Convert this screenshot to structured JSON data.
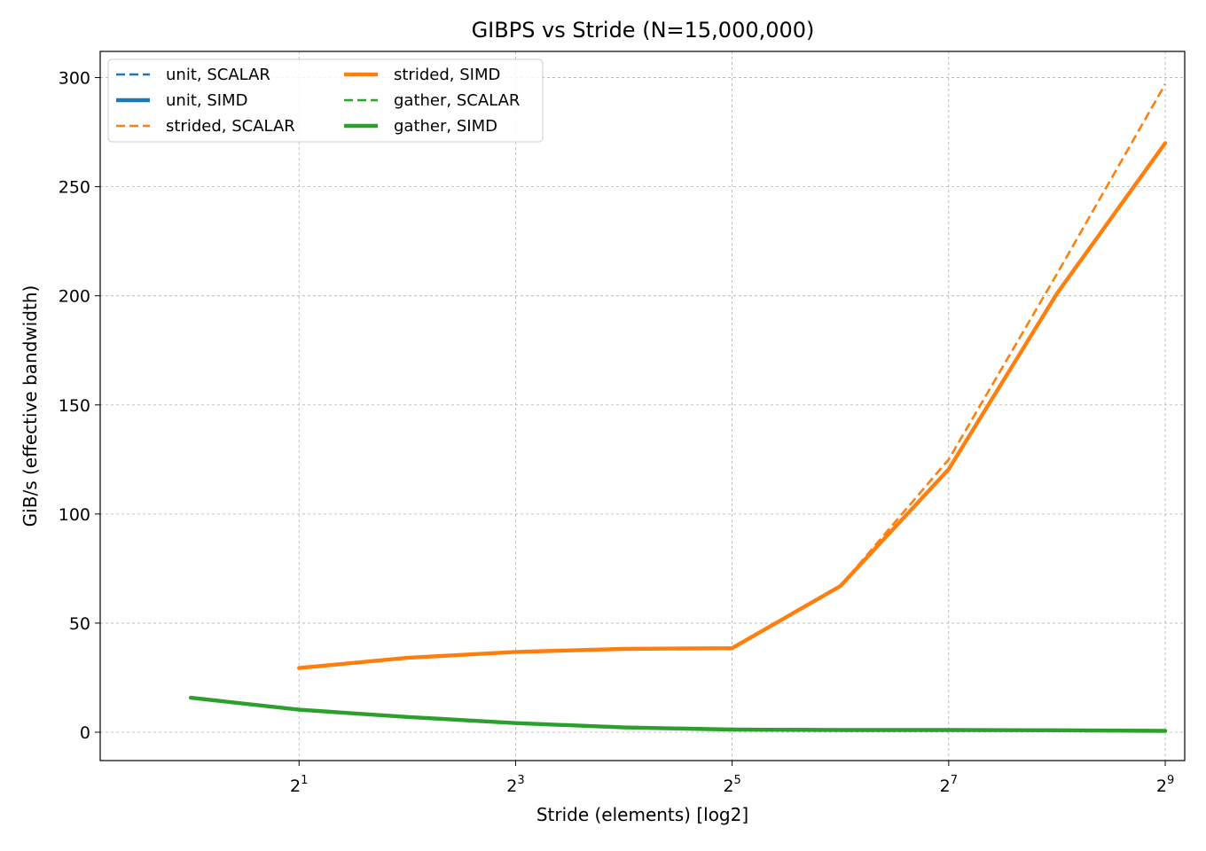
{
  "chart_data": {
    "type": "line",
    "title": "GIBPS vs Stride (N=15,000,000)",
    "xlabel": "Stride (elements) [log2]",
    "ylabel": "GiB/s (effective bandwidth)",
    "x_scale": "log2",
    "x_ticks": [
      {
        "value": 2,
        "base": "2",
        "exp": "1"
      },
      {
        "value": 8,
        "base": "2",
        "exp": "3"
      },
      {
        "value": 32,
        "base": "2",
        "exp": "5"
      },
      {
        "value": 128,
        "base": "2",
        "exp": "7"
      },
      {
        "value": 512,
        "base": "2",
        "exp": "9"
      }
    ],
    "xlim": [
      0.56,
      580
    ],
    "ylim": [
      -13,
      312
    ],
    "y_ticks": [
      0,
      50,
      100,
      150,
      200,
      250,
      300
    ],
    "grid": true,
    "legend_position": "top-left",
    "series": [
      {
        "name": "unit, SCALAR",
        "color": "#1f77b4",
        "style": "dashed",
        "x": [
          1
        ],
        "y": [
          15.8
        ]
      },
      {
        "name": "unit, SIMD",
        "color": "#1f77b4",
        "style": "solid",
        "x": [
          1
        ],
        "y": [
          15.8
        ]
      },
      {
        "name": "strided, SCALAR",
        "color": "#ff7f0e",
        "style": "dashed",
        "x": [
          2,
          4,
          8,
          16,
          32,
          64,
          128,
          256,
          512
        ],
        "y": [
          29.6,
          34.3,
          36.9,
          38.3,
          38.6,
          67.0,
          125.0,
          210.0,
          297.0
        ]
      },
      {
        "name": "strided, SIMD",
        "color": "#ff7f0e",
        "style": "solid",
        "x": [
          2,
          4,
          8,
          16,
          32,
          64,
          128,
          256,
          512
        ],
        "y": [
          29.4,
          34.1,
          36.8,
          38.2,
          38.5,
          67.0,
          120.5,
          201.0,
          270.0
        ]
      },
      {
        "name": "gather, SCALAR",
        "color": "#2ca02c",
        "style": "dashed",
        "x": [
          1,
          2,
          4,
          8,
          16,
          32,
          64,
          128,
          256,
          512
        ],
        "y": [
          15.8,
          10.3,
          7.0,
          4.2,
          2.2,
          1.2,
          1.0,
          1.0,
          0.9,
          0.6
        ]
      },
      {
        "name": "gather, SIMD",
        "color": "#2ca02c",
        "style": "solid",
        "x": [
          1,
          2,
          4,
          8,
          16,
          32,
          64,
          128,
          256,
          512
        ],
        "y": [
          15.8,
          10.3,
          7.0,
          4.2,
          2.2,
          1.2,
          1.0,
          1.0,
          0.9,
          0.6
        ]
      }
    ]
  }
}
